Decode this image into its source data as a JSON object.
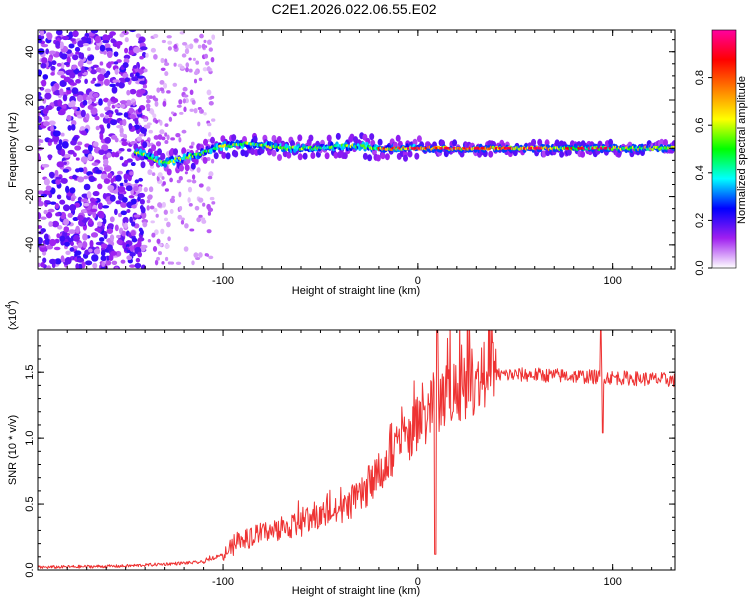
{
  "title": "C2E1.2026.022.06.55.E02",
  "chart_data": [
    {
      "type": "heatmap",
      "xlabel": "Height of straight line (km)",
      "ylabel": "Frequency (Hz)",
      "xlim": [
        -195,
        132
      ],
      "ylim": [
        -50,
        49
      ],
      "xticks": [
        -100,
        0,
        100
      ],
      "xtick_labels": [
        "-100",
        "0",
        "100"
      ],
      "yticks": [
        -40,
        -20,
        0,
        20,
        40
      ],
      "ytick_labels": [
        "-40",
        "-20",
        "0",
        "20",
        "40"
      ],
      "colorbar": {
        "label": "Normalized spectral amplitude",
        "range": [
          0,
          1
        ],
        "ticks": [
          0,
          0.2,
          0.4,
          0.6,
          0.8
        ],
        "tick_labels": [
          "0.0",
          "0.2",
          "0.4",
          "0.6",
          "0.8"
        ],
        "colors": [
          "#ffffff",
          "#a020f0",
          "#0000ff",
          "#00ffff",
          "#00ff00",
          "#ffff00",
          "#ff8000",
          "#ff0000",
          "#ff00a0"
        ]
      },
      "ridge": {
        "x": [
          -143,
          -130,
          -115,
          -100,
          -85,
          -70,
          -55,
          -40,
          -30,
          -20,
          -10,
          0,
          20,
          60,
          100,
          132
        ],
        "freq": [
          -2,
          -6,
          -3,
          1,
          2,
          0,
          0,
          1,
          1,
          0,
          0,
          0,
          0,
          0,
          0,
          0
        ]
      }
    },
    {
      "type": "line",
      "xlabel": "Height of straight line (km)",
      "ylabel": "SNR (10 * v/v)",
      "y_multiplier": "(x10",
      "y_multiplier_exp": "4",
      "y_multiplier_close": ")",
      "color": "#ee3333",
      "xlim": [
        -195,
        132
      ],
      "ylim": [
        0,
        1.82
      ],
      "xticks": [
        -100,
        0,
        100
      ],
      "xtick_labels": [
        "-100",
        "0",
        "100"
      ],
      "yticks": [
        0,
        0.5,
        1.0,
        1.5
      ],
      "ytick_labels": [
        "0.0",
        "0.5",
        "1.0",
        "1.5"
      ],
      "envelope": {
        "x": [
          -195,
          -150,
          -110,
          -100,
          -90,
          -80,
          -60,
          -40,
          -30,
          -20,
          -10,
          0,
          8,
          12,
          20,
          30,
          40,
          60,
          80,
          100,
          132
        ],
        "y": [
          0.02,
          0.03,
          0.06,
          0.12,
          0.22,
          0.28,
          0.35,
          0.45,
          0.55,
          0.72,
          0.92,
          1.1,
          1.25,
          1.3,
          1.38,
          1.45,
          1.48,
          1.48,
          1.47,
          1.46,
          1.44
        ]
      },
      "peaks": [
        {
          "x": 10,
          "y": 1.82
        },
        {
          "x": 9,
          "y": 0.12
        },
        {
          "x": 94,
          "y": 1.82
        },
        {
          "x": 95,
          "y": 1.04
        }
      ]
    }
  ]
}
